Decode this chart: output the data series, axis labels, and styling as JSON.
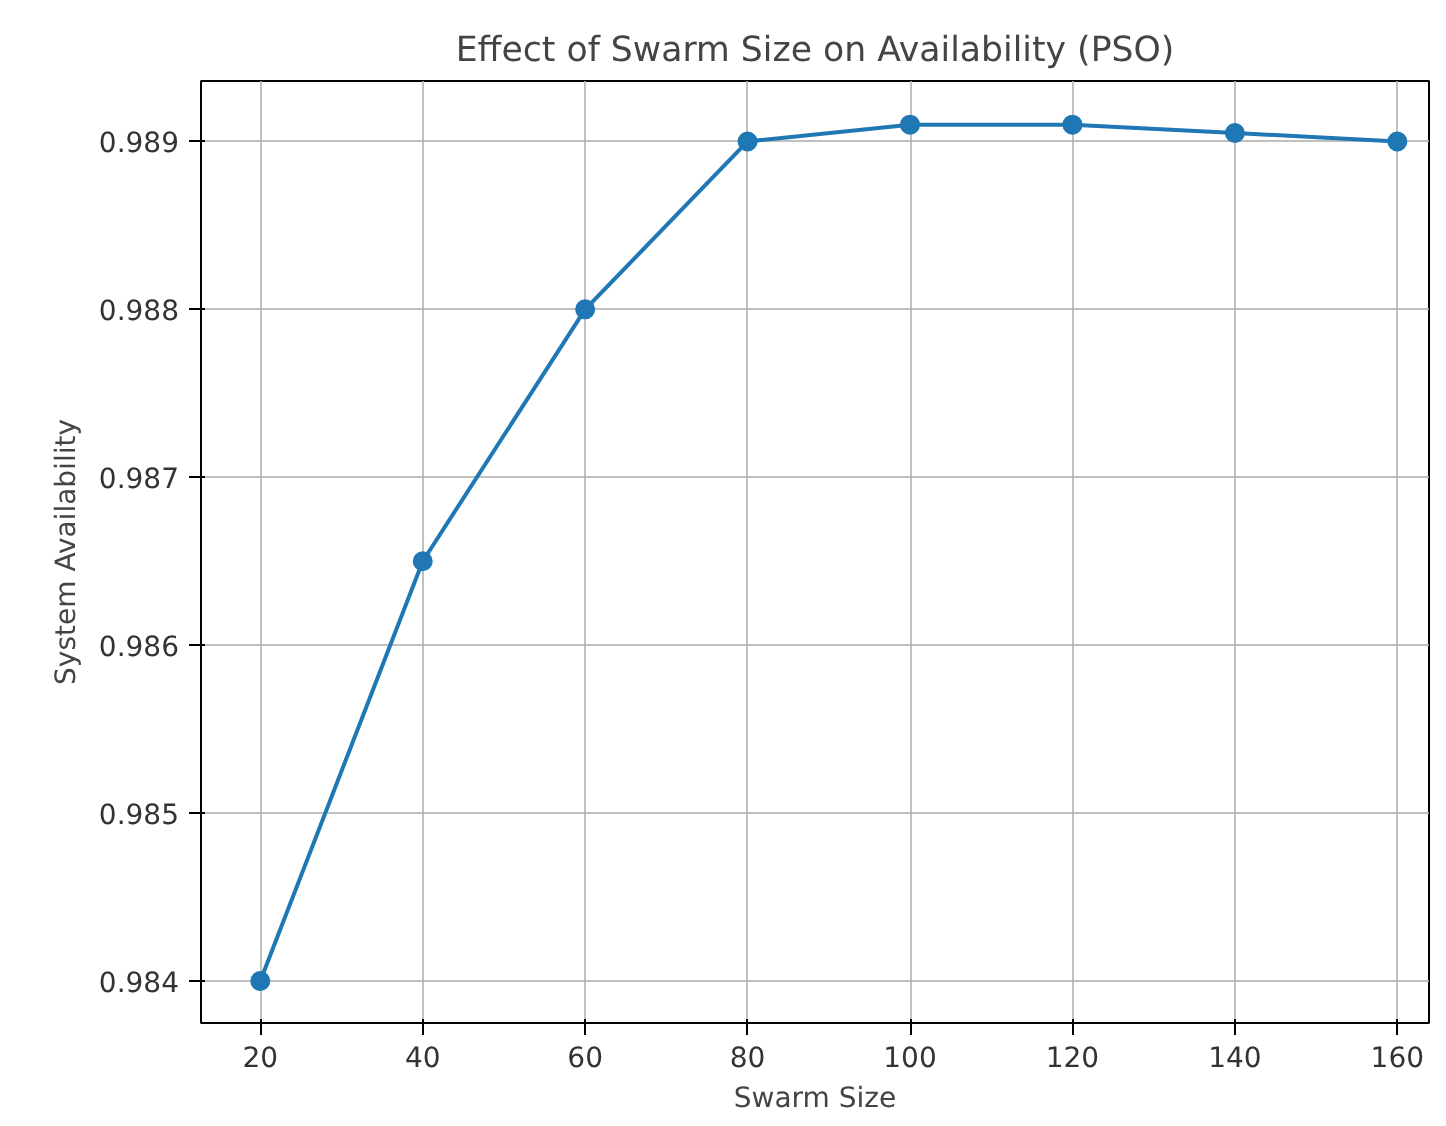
{
  "chart_data": {
    "type": "line",
    "title": "Effect of Swarm Size on Availability (PSO)",
    "xlabel": "Swarm Size",
    "ylabel": "System Availability",
    "x": [
      20,
      40,
      60,
      80,
      100,
      120,
      140,
      160
    ],
    "series": [
      {
        "color": "#1f77b4",
        "values": [
          0.984,
          0.9865,
          0.988,
          0.989,
          0.9891,
          0.9891,
          0.98905,
          0.989
        ]
      }
    ],
    "xlim": [
      12.7,
      163.9
    ],
    "ylim": [
      0.98375,
      0.98936
    ],
    "xticks": [
      20,
      40,
      60,
      80,
      100,
      120,
      140,
      160
    ],
    "yticks": [
      0.984,
      0.985,
      0.986,
      0.987,
      0.988,
      0.989
    ],
    "grid": true,
    "marker": "circle",
    "line_style": "solid"
  }
}
